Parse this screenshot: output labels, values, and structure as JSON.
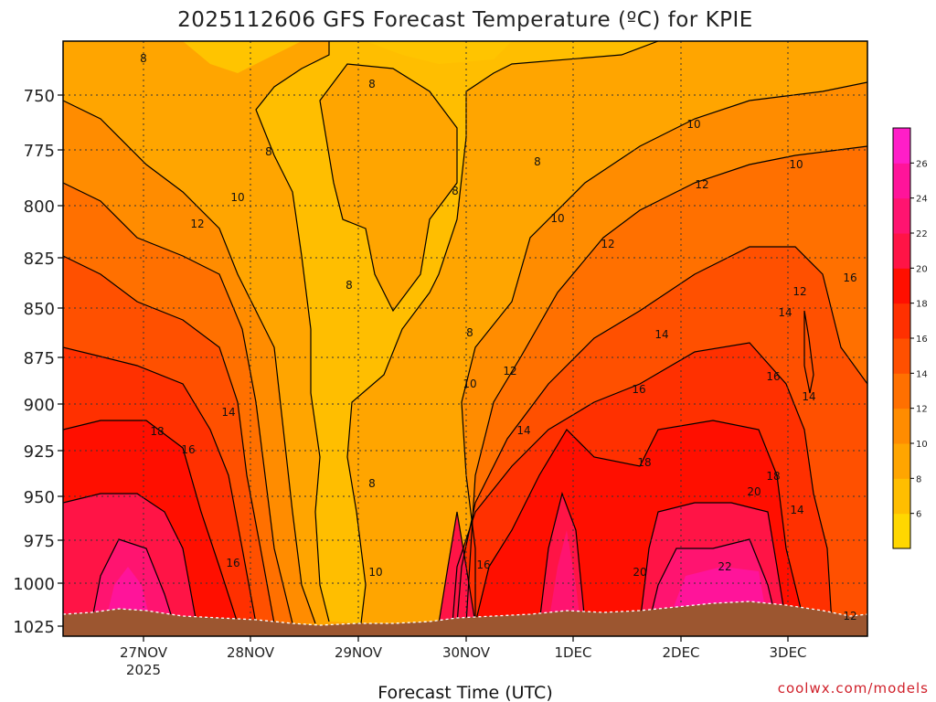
{
  "chart_data": {
    "type": "heatmap",
    "title": "2025112606 GFS Forecast Temperature (ºC) for KPIE",
    "xlabel": "Forecast Time (UTC)",
    "credit": "coolwx.com/models",
    "y_axis": {
      "ticks": [
        "750",
        "775",
        "800",
        "825",
        "850",
        "875",
        "900",
        "925",
        "950",
        "975",
        "1000",
        "1025"
      ],
      "inverted": true,
      "grid": "dotted"
    },
    "x_axis": {
      "ticks": [
        "27NOV",
        "28NOV",
        "29NOV",
        "30NOV",
        "1DEC",
        "2DEC",
        "3DEC"
      ],
      "year_label": "2025",
      "grid": "dotted"
    },
    "colorbar": {
      "labels": [
        "6",
        "8",
        "10",
        "12",
        "14",
        "16",
        "18",
        "20",
        "22",
        "24",
        "26"
      ],
      "colors": [
        "#ffd700",
        "#ffbe00",
        "#ffa500",
        "#ff8c00",
        "#ff7000",
        "#ff5000",
        "#ff3000",
        "#ff0f00",
        "#ff1446",
        "#ff1470",
        "#ff149a",
        "#ff1ec8"
      ]
    },
    "contour_labels": [
      {
        "text": "8"
      },
      {
        "text": "8"
      },
      {
        "text": "8"
      },
      {
        "text": "8"
      },
      {
        "text": "8"
      },
      {
        "text": "8"
      },
      {
        "text": "8"
      },
      {
        "text": "8"
      },
      {
        "text": "10"
      },
      {
        "text": "10"
      },
      {
        "text": "10"
      },
      {
        "text": "10"
      },
      {
        "text": "10"
      },
      {
        "text": "10"
      },
      {
        "text": "12"
      },
      {
        "text": "12"
      },
      {
        "text": "12"
      },
      {
        "text": "12"
      },
      {
        "text": "12"
      },
      {
        "text": "12"
      },
      {
        "text": "14"
      },
      {
        "text": "14"
      },
      {
        "text": "14"
      },
      {
        "text": "14"
      },
      {
        "text": "14"
      },
      {
        "text": "14"
      },
      {
        "text": "16"
      },
      {
        "text": "16"
      },
      {
        "text": "16"
      },
      {
        "text": "16"
      },
      {
        "text": "16"
      },
      {
        "text": "16"
      },
      {
        "text": "18"
      },
      {
        "text": "18"
      },
      {
        "text": "18"
      },
      {
        "text": "20"
      },
      {
        "text": "20"
      },
      {
        "text": "22"
      }
    ],
    "ground_color": "#9c5630"
  }
}
